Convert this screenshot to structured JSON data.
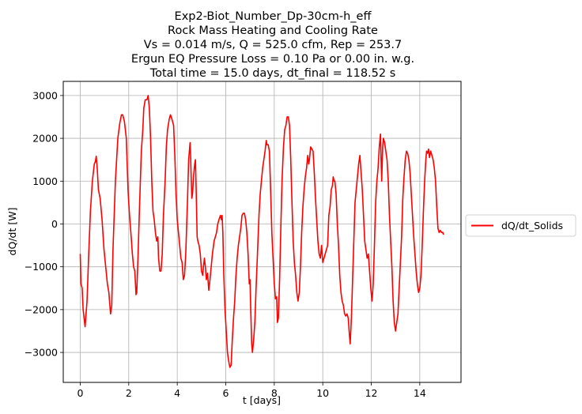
{
  "chart_data": {
    "type": "line",
    "title_lines": [
      "Exp2-Biot_Number_Dp-30cm-h_eff",
      "Rock Mass Heating and Cooling Rate",
      "Vs = 0.014 m/s, Q = 525.0 cfm, Rep = 253.7",
      "Ergun EQ Pressure Loss = 0.10 Pa or 0.00 in. w.g.",
      "Total time = 15.0 days, dt_final = 118.52 s"
    ],
    "xlabel": "t [days]",
    "ylabel": "dQ/dt [W]",
    "xlim": [
      -0.7,
      15.7
    ],
    "ylim": [
      -3700,
      3330
    ],
    "xticks": [
      0,
      2,
      4,
      6,
      8,
      10,
      12,
      14
    ],
    "yticks": [
      -3000,
      -2000,
      -1000,
      0,
      1000,
      2000,
      3000
    ],
    "grid": true,
    "legend_position": "right-outside",
    "series": [
      {
        "name": "dQ/dt_Solids",
        "color": "#ff0000",
        "points": [
          [
            0.0,
            -700
          ],
          [
            0.03,
            -1400
          ],
          [
            0.08,
            -1500
          ],
          [
            0.12,
            -2000
          ],
          [
            0.2,
            -2400
          ],
          [
            0.28,
            -1800
          ],
          [
            0.35,
            -700
          ],
          [
            0.42,
            300
          ],
          [
            0.5,
            1000
          ],
          [
            0.58,
            1400
          ],
          [
            0.62,
            1450
          ],
          [
            0.66,
            1580
          ],
          [
            0.7,
            1300
          ],
          [
            0.75,
            800
          ],
          [
            0.82,
            600
          ],
          [
            0.9,
            100
          ],
          [
            0.98,
            -600
          ],
          [
            1.05,
            -1000
          ],
          [
            1.12,
            -1400
          ],
          [
            1.18,
            -1600
          ],
          [
            1.25,
            -2100
          ],
          [
            1.3,
            -1900
          ],
          [
            1.35,
            -600
          ],
          [
            1.45,
            1000
          ],
          [
            1.55,
            2000
          ],
          [
            1.63,
            2350
          ],
          [
            1.7,
            2550
          ],
          [
            1.75,
            2550
          ],
          [
            1.82,
            2400
          ],
          [
            1.9,
            2000
          ],
          [
            1.97,
            800
          ],
          [
            2.02,
            300
          ],
          [
            2.1,
            -300
          ],
          [
            2.15,
            -700
          ],
          [
            2.2,
            -1000
          ],
          [
            2.25,
            -1100
          ],
          [
            2.3,
            -1650
          ],
          [
            2.33,
            -1600
          ],
          [
            2.38,
            -800
          ],
          [
            2.45,
            500
          ],
          [
            2.52,
            1700
          ],
          [
            2.58,
            2200
          ],
          [
            2.62,
            2700
          ],
          [
            2.68,
            2900
          ],
          [
            2.75,
            2900
          ],
          [
            2.8,
            3000
          ],
          [
            2.85,
            2700
          ],
          [
            2.9,
            2000
          ],
          [
            2.95,
            1000
          ],
          [
            3.0,
            300
          ],
          [
            3.05,
            100
          ],
          [
            3.1,
            -200
          ],
          [
            3.15,
            -400
          ],
          [
            3.2,
            -300
          ],
          [
            3.23,
            -800
          ],
          [
            3.28,
            -1100
          ],
          [
            3.33,
            -1100
          ],
          [
            3.38,
            -700
          ],
          [
            3.43,
            200
          ],
          [
            3.5,
            1000
          ],
          [
            3.55,
            1800
          ],
          [
            3.6,
            2200
          ],
          [
            3.67,
            2450
          ],
          [
            3.72,
            2550
          ],
          [
            3.78,
            2450
          ],
          [
            3.85,
            2300
          ],
          [
            3.9,
            1600
          ],
          [
            3.95,
            700
          ],
          [
            4.0,
            100
          ],
          [
            4.05,
            -200
          ],
          [
            4.1,
            -500
          ],
          [
            4.15,
            -800
          ],
          [
            4.2,
            -900
          ],
          [
            4.25,
            -1300
          ],
          [
            4.3,
            -1200
          ],
          [
            4.35,
            -700
          ],
          [
            4.42,
            500
          ],
          [
            4.47,
            1500
          ],
          [
            4.5,
            1700
          ],
          [
            4.53,
            1900
          ],
          [
            4.55,
            1600
          ],
          [
            4.58,
            1000
          ],
          [
            4.6,
            600
          ],
          [
            4.63,
            700
          ],
          [
            4.67,
            1100
          ],
          [
            4.72,
            1400
          ],
          [
            4.75,
            1500
          ],
          [
            4.78,
            800
          ],
          [
            4.82,
            -300
          ],
          [
            4.85,
            -400
          ],
          [
            4.9,
            -500
          ],
          [
            4.95,
            -700
          ],
          [
            5.0,
            -1100
          ],
          [
            5.05,
            -1200
          ],
          [
            5.08,
            -1000
          ],
          [
            5.12,
            -800
          ],
          [
            5.16,
            -1000
          ],
          [
            5.2,
            -1300
          ],
          [
            5.25,
            -1150
          ],
          [
            5.3,
            -1550
          ],
          [
            5.35,
            -1300
          ],
          [
            5.4,
            -1000
          ],
          [
            5.45,
            -700
          ],
          [
            5.52,
            -400
          ],
          [
            5.57,
            -300
          ],
          [
            5.62,
            -200
          ],
          [
            5.67,
            0
          ],
          [
            5.72,
            100
          ],
          [
            5.78,
            200
          ],
          [
            5.82,
            100
          ],
          [
            5.85,
            200
          ],
          [
            5.88,
            -200
          ],
          [
            5.92,
            -1200
          ],
          [
            5.97,
            -2000
          ],
          [
            6.02,
            -2500
          ],
          [
            6.07,
            -3000
          ],
          [
            6.12,
            -3200
          ],
          [
            6.17,
            -3350
          ],
          [
            6.22,
            -3300
          ],
          [
            6.27,
            -2700
          ],
          [
            6.32,
            -2200
          ],
          [
            6.37,
            -1800
          ],
          [
            6.42,
            -1200
          ],
          [
            6.47,
            -800
          ],
          [
            6.52,
            -500
          ],
          [
            6.57,
            -300
          ],
          [
            6.62,
            -100
          ],
          [
            6.67,
            200
          ],
          [
            6.72,
            250
          ],
          [
            6.77,
            250
          ],
          [
            6.82,
            100
          ],
          [
            6.87,
            -200
          ],
          [
            6.92,
            -700
          ],
          [
            6.97,
            -1400
          ],
          [
            7.0,
            -1300
          ],
          [
            7.03,
            -2000
          ],
          [
            7.07,
            -2800
          ],
          [
            7.1,
            -3000
          ],
          [
            7.15,
            -2700
          ],
          [
            7.2,
            -2300
          ],
          [
            7.25,
            -1500
          ],
          [
            7.3,
            -800
          ],
          [
            7.37,
            200
          ],
          [
            7.42,
            700
          ],
          [
            7.47,
            1000
          ],
          [
            7.52,
            1300
          ],
          [
            7.57,
            1500
          ],
          [
            7.62,
            1700
          ],
          [
            7.67,
            1950
          ],
          [
            7.7,
            1850
          ],
          [
            7.75,
            1850
          ],
          [
            7.8,
            1700
          ],
          [
            7.85,
            800
          ],
          [
            7.9,
            -200
          ],
          [
            7.95,
            -800
          ],
          [
            8.0,
            -1400
          ],
          [
            8.05,
            -1750
          ],
          [
            8.1,
            -1700
          ],
          [
            8.13,
            -2300
          ],
          [
            8.17,
            -2200
          ],
          [
            8.22,
            -1300
          ],
          [
            8.27,
            -100
          ],
          [
            8.32,
            1000
          ],
          [
            8.38,
            1800
          ],
          [
            8.43,
            2200
          ],
          [
            8.48,
            2300
          ],
          [
            8.53,
            2500
          ],
          [
            8.58,
            2500
          ],
          [
            8.63,
            2300
          ],
          [
            8.68,
            1500
          ],
          [
            8.73,
            500
          ],
          [
            8.78,
            -400
          ],
          [
            8.83,
            -900
          ],
          [
            8.88,
            -1200
          ],
          [
            8.93,
            -1600
          ],
          [
            8.98,
            -1800
          ],
          [
            9.03,
            -1600
          ],
          [
            9.08,
            -1000
          ],
          [
            9.13,
            -200
          ],
          [
            9.18,
            400
          ],
          [
            9.23,
            800
          ],
          [
            9.28,
            1100
          ],
          [
            9.33,
            1300
          ],
          [
            9.38,
            1600
          ],
          [
            9.42,
            1400
          ],
          [
            9.45,
            1500
          ],
          [
            9.5,
            1800
          ],
          [
            9.55,
            1750
          ],
          [
            9.6,
            1700
          ],
          [
            9.65,
            1200
          ],
          [
            9.7,
            600
          ],
          [
            9.75,
            100
          ],
          [
            9.8,
            -400
          ],
          [
            9.85,
            -700
          ],
          [
            9.9,
            -800
          ],
          [
            9.95,
            -500
          ],
          [
            10.0,
            -900
          ],
          [
            10.05,
            -800
          ],
          [
            10.1,
            -700
          ],
          [
            10.15,
            -600
          ],
          [
            10.2,
            -500
          ],
          [
            10.25,
            200
          ],
          [
            10.3,
            400
          ],
          [
            10.35,
            800
          ],
          [
            10.4,
            900
          ],
          [
            10.43,
            1100
          ],
          [
            10.47,
            1000
          ],
          [
            10.5,
            1000
          ],
          [
            10.55,
            700
          ],
          [
            10.6,
            0
          ],
          [
            10.65,
            -500
          ],
          [
            10.7,
            -1200
          ],
          [
            10.75,
            -1600
          ],
          [
            10.8,
            -1800
          ],
          [
            10.85,
            -1900
          ],
          [
            10.9,
            -2100
          ],
          [
            10.95,
            -2150
          ],
          [
            11.0,
            -2100
          ],
          [
            11.05,
            -2200
          ],
          [
            11.1,
            -2600
          ],
          [
            11.13,
            -2800
          ],
          [
            11.18,
            -2200
          ],
          [
            11.23,
            -1300
          ],
          [
            11.28,
            -400
          ],
          [
            11.33,
            500
          ],
          [
            11.38,
            800
          ],
          [
            11.43,
            1100
          ],
          [
            11.48,
            1400
          ],
          [
            11.53,
            1600
          ],
          [
            11.58,
            1200
          ],
          [
            11.63,
            800
          ],
          [
            11.68,
            200
          ],
          [
            11.73,
            -400
          ],
          [
            11.78,
            -600
          ],
          [
            11.83,
            -800
          ],
          [
            11.88,
            -700
          ],
          [
            11.93,
            -1100
          ],
          [
            11.98,
            -1500
          ],
          [
            12.03,
            -1800
          ],
          [
            12.08,
            -1400
          ],
          [
            12.13,
            -500
          ],
          [
            12.18,
            500
          ],
          [
            12.23,
            1000
          ],
          [
            12.28,
            1300
          ],
          [
            12.33,
            1800
          ],
          [
            12.38,
            2100
          ],
          [
            12.4,
            1600
          ],
          [
            12.43,
            1000
          ],
          [
            12.47,
            1800
          ],
          [
            12.5,
            2000
          ],
          [
            12.55,
            1900
          ],
          [
            12.6,
            1700
          ],
          [
            12.65,
            1500
          ],
          [
            12.7,
            1000
          ],
          [
            12.75,
            200
          ],
          [
            12.8,
            -400
          ],
          [
            12.85,
            -1000
          ],
          [
            12.9,
            -1800
          ],
          [
            12.95,
            -2300
          ],
          [
            13.0,
            -2500
          ],
          [
            13.05,
            -2300
          ],
          [
            13.1,
            -2100
          ],
          [
            13.15,
            -1500
          ],
          [
            13.2,
            -900
          ],
          [
            13.25,
            -300
          ],
          [
            13.3,
            600
          ],
          [
            13.35,
            1100
          ],
          [
            13.4,
            1500
          ],
          [
            13.45,
            1700
          ],
          [
            13.5,
            1650
          ],
          [
            13.55,
            1500
          ],
          [
            13.6,
            1200
          ],
          [
            13.65,
            700
          ],
          [
            13.7,
            200
          ],
          [
            13.75,
            -300
          ],
          [
            13.8,
            -700
          ],
          [
            13.85,
            -1100
          ],
          [
            13.9,
            -1400
          ],
          [
            13.95,
            -1600
          ],
          [
            14.0,
            -1500
          ],
          [
            14.05,
            -1200
          ],
          [
            14.1,
            -500
          ],
          [
            14.15,
            300
          ],
          [
            14.2,
            1000
          ],
          [
            14.25,
            1500
          ],
          [
            14.28,
            1700
          ],
          [
            14.32,
            1650
          ],
          [
            14.36,
            1750
          ],
          [
            14.4,
            1550
          ],
          [
            14.45,
            1700
          ],
          [
            14.5,
            1600
          ],
          [
            14.55,
            1500
          ],
          [
            14.6,
            1300
          ],
          [
            14.65,
            1000
          ],
          [
            14.7,
            400
          ],
          [
            14.75,
            -100
          ],
          [
            14.8,
            -200
          ],
          [
            14.85,
            -150
          ],
          [
            14.9,
            -200
          ],
          [
            14.95,
            -200
          ],
          [
            14.98,
            -250
          ]
        ]
      }
    ]
  }
}
